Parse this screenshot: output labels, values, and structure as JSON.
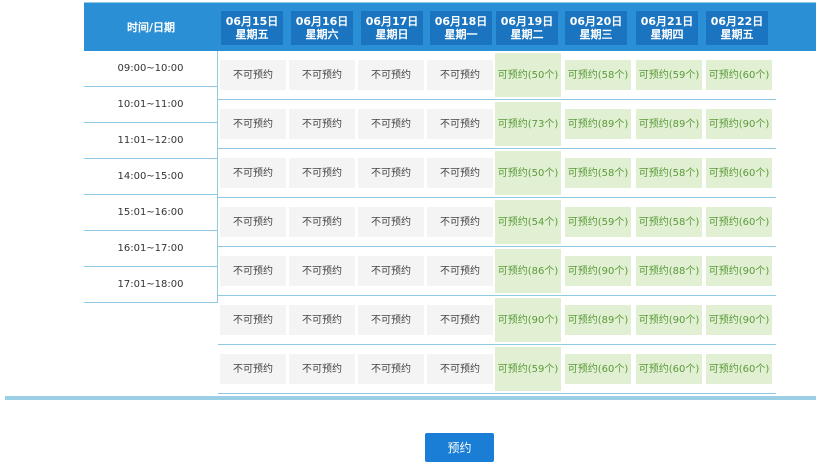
{
  "header": {
    "time_label": "时间/日期",
    "days": [
      {
        "date": "06月15日",
        "weekday": "星期五"
      },
      {
        "date": "06月16日",
        "weekday": "星期六"
      },
      {
        "date": "06月17日",
        "weekday": "星期日"
      },
      {
        "date": "06月18日",
        "weekday": "星期一"
      },
      {
        "date": "06月19日",
        "weekday": "星期二"
      },
      {
        "date": "06月20日",
        "weekday": "星期三"
      },
      {
        "date": "06月21日",
        "weekday": "星期四"
      },
      {
        "date": "06月22日",
        "weekday": "星期五"
      }
    ]
  },
  "time_slots": [
    "09:00~10:00",
    "10:01~11:00",
    "11:01~12:00",
    "14:00~15:00",
    "15:01~16:00",
    "16:01~17:00",
    "17:01~18:00"
  ],
  "rows": [
    [
      "不可预约",
      "不可预约",
      "不可预约",
      "不可预约",
      "可预约(50个)",
      "可预约(58个)",
      "可预约(59个)",
      "可预约(60个)"
    ],
    [
      "不可预约",
      "不可预约",
      "不可预约",
      "不可预约",
      "可预约(73个)",
      "可预约(89个)",
      "可预约(89个)",
      "可预约(90个)"
    ],
    [
      "不可预约",
      "不可预约",
      "不可预约",
      "不可预约",
      "可预约(50个)",
      "可预约(58个)",
      "可预约(58个)",
      "可预约(60个)"
    ],
    [
      "不可预约",
      "不可预约",
      "不可预约",
      "不可预约",
      "可预约(54个)",
      "可预约(59个)",
      "可预约(58个)",
      "可预约(60个)"
    ],
    [
      "不可预约",
      "不可预约",
      "不可预约",
      "不可预约",
      "可预约(86个)",
      "可预约(90个)",
      "可预约(88个)",
      "可预约(90个)"
    ],
    [
      "不可预约",
      "不可预约",
      "不可预约",
      "不可预约",
      "可预约(90个)",
      "可预约(89个)",
      "可预约(90个)",
      "可预约(90个)"
    ],
    [
      "不可预约",
      "不可预约",
      "不可预约",
      "不可预约",
      "可预约(59个)",
      "可预约(60个)",
      "可预约(60个)",
      "可预约(60个)"
    ]
  ],
  "unavailable_label": "不可预约",
  "submit_label": "预约",
  "colors": {
    "header_bg": "#2b8fd6",
    "header_day_bg": "#1a74bf",
    "available_bg": "#e1f0d2",
    "available_text": "#5a9a3a",
    "unavailable_bg": "#f4f4f4",
    "button_bg": "#1a7ed6"
  }
}
